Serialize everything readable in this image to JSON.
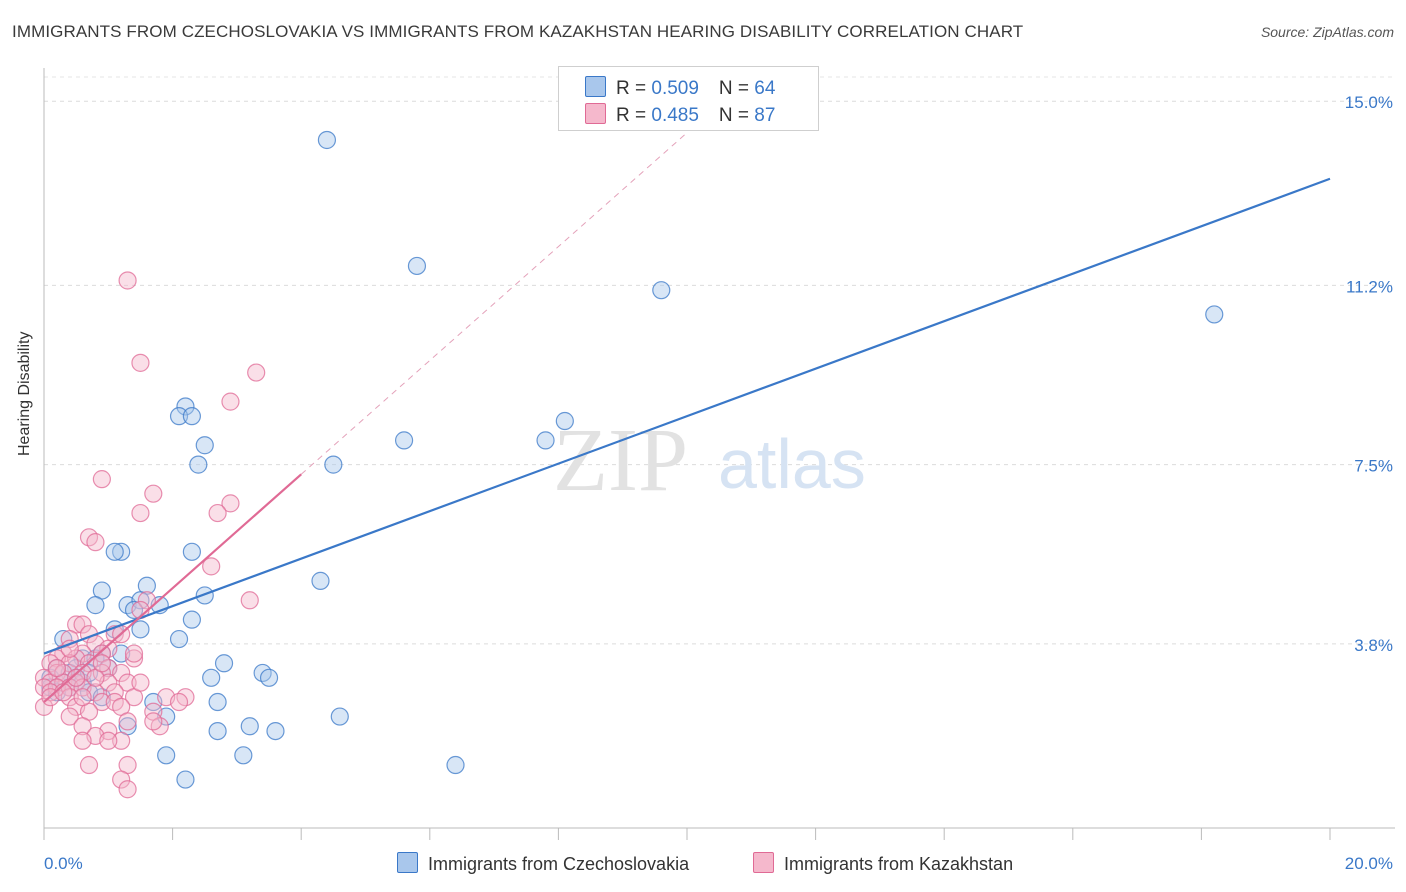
{
  "title": "IMMIGRANTS FROM CZECHOSLOVAKIA VS IMMIGRANTS FROM KAZAKHSTAN HEARING DISABILITY CORRELATION CHART",
  "source": "Source: ZipAtlas.com",
  "watermark": {
    "zip": "ZIP",
    "atlas": "atlas"
  },
  "colors": {
    "blue": "#3a78c8",
    "blue_fill": "#a9c7ec",
    "pink": "#e06a95",
    "pink_fill": "#f5b8cc"
  },
  "legend": {
    "series1": {
      "r_label": "R = ",
      "r_value": "0.509",
      "n_label": "N = ",
      "n_value": "64"
    },
    "series2": {
      "r_label": "R = ",
      "r_value": "0.485",
      "n_label": "N = ",
      "n_value": "87"
    }
  },
  "bottom_legend": {
    "series1": "Immigrants from Czechoslovakia",
    "series2": "Immigrants from Kazakhstan"
  },
  "chart_data": {
    "type": "scatter",
    "title": "IMMIGRANTS FROM CZECHOSLOVAKIA VS IMMIGRANTS FROM KAZAKHSTAN HEARING DISABILITY CORRELATION CHART",
    "xlabel": "",
    "ylabel": "Hearing Disability",
    "xlim": [
      0,
      20
    ],
    "ylim": [
      0,
      15.5
    ],
    "x_tick_labels": [
      "0.0%",
      "20.0%"
    ],
    "y_tick_values": [
      3.8,
      7.5,
      11.2,
      15.0
    ],
    "y_tick_labels": [
      "3.8%",
      "7.5%",
      "11.2%",
      "15.0%"
    ],
    "series": [
      {
        "name": "Immigrants from Czechoslovakia",
        "color": "#3a78c8",
        "R": 0.509,
        "N": 64,
        "trend": {
          "x0": 0,
          "y0": 3.6,
          "x1": 20,
          "y1": 13.4
        },
        "points": [
          [
            4.4,
            14.2
          ],
          [
            5.8,
            11.6
          ],
          [
            9.6,
            11.1
          ],
          [
            18.2,
            10.6
          ],
          [
            8.1,
            8.4
          ],
          [
            7.8,
            8.0
          ],
          [
            5.6,
            8.0
          ],
          [
            4.5,
            7.5
          ],
          [
            2.2,
            8.7
          ],
          [
            2.1,
            8.5
          ],
          [
            2.3,
            8.5
          ],
          [
            2.5,
            7.9
          ],
          [
            2.4,
            7.5
          ],
          [
            2.3,
            5.7
          ],
          [
            1.2,
            5.7
          ],
          [
            1.1,
            5.7
          ],
          [
            4.3,
            5.1
          ],
          [
            1.6,
            5.0
          ],
          [
            0.9,
            4.9
          ],
          [
            2.5,
            4.8
          ],
          [
            0.8,
            4.6
          ],
          [
            1.3,
            4.6
          ],
          [
            1.5,
            4.7
          ],
          [
            1.8,
            4.6
          ],
          [
            1.4,
            4.5
          ],
          [
            2.3,
            4.3
          ],
          [
            1.1,
            4.1
          ],
          [
            1.5,
            4.1
          ],
          [
            0.3,
            3.9
          ],
          [
            2.1,
            3.9
          ],
          [
            0.9,
            3.6
          ],
          [
            1.2,
            3.6
          ],
          [
            0.6,
            3.5
          ],
          [
            0.8,
            3.5
          ],
          [
            0.2,
            3.3
          ],
          [
            0.5,
            3.3
          ],
          [
            0.4,
            3.2
          ],
          [
            2.8,
            3.4
          ],
          [
            0.1,
            3.1
          ],
          [
            0.3,
            3.0
          ],
          [
            0.6,
            3.0
          ],
          [
            0.7,
            2.8
          ],
          [
            3.4,
            3.2
          ],
          [
            3.5,
            3.1
          ],
          [
            2.6,
            3.1
          ],
          [
            0.9,
            2.7
          ],
          [
            1.7,
            2.6
          ],
          [
            2.7,
            2.6
          ],
          [
            1.9,
            2.3
          ],
          [
            4.6,
            2.3
          ],
          [
            1.3,
            2.1
          ],
          [
            2.7,
            2.0
          ],
          [
            3.2,
            2.1
          ],
          [
            3.6,
            2.0
          ],
          [
            1.9,
            1.5
          ],
          [
            3.1,
            1.5
          ],
          [
            6.4,
            1.3
          ],
          [
            2.2,
            1.0
          ],
          [
            0.1,
            2.9
          ],
          [
            0.4,
            2.9
          ],
          [
            0.2,
            2.8
          ],
          [
            0.5,
            3.1
          ],
          [
            1.0,
            3.3
          ],
          [
            0.7,
            3.2
          ]
        ]
      },
      {
        "name": "Immigrants from Kazakhstan",
        "color": "#e06a95",
        "R": 0.485,
        "N": 87,
        "trend": {
          "x0": 0,
          "y0": 2.6,
          "x1": 4.0,
          "y1": 7.3
        },
        "points": [
          [
            1.3,
            11.3
          ],
          [
            1.5,
            9.6
          ],
          [
            3.3,
            9.4
          ],
          [
            2.9,
            8.8
          ],
          [
            0.9,
            7.2
          ],
          [
            1.7,
            6.9
          ],
          [
            2.9,
            6.7
          ],
          [
            2.7,
            6.5
          ],
          [
            1.5,
            6.5
          ],
          [
            0.7,
            6.0
          ],
          [
            0.8,
            5.9
          ],
          [
            2.6,
            5.4
          ],
          [
            3.2,
            4.7
          ],
          [
            1.6,
            4.7
          ],
          [
            1.5,
            4.5
          ],
          [
            0.5,
            4.2
          ],
          [
            0.6,
            4.2
          ],
          [
            0.7,
            4.0
          ],
          [
            1.1,
            4.0
          ],
          [
            1.2,
            4.0
          ],
          [
            0.4,
            3.9
          ],
          [
            0.8,
            3.8
          ],
          [
            1.0,
            3.7
          ],
          [
            0.3,
            3.6
          ],
          [
            0.6,
            3.6
          ],
          [
            0.9,
            3.6
          ],
          [
            0.2,
            3.5
          ],
          [
            0.5,
            3.5
          ],
          [
            1.4,
            3.5
          ],
          [
            0.1,
            3.4
          ],
          [
            0.4,
            3.4
          ],
          [
            0.7,
            3.4
          ],
          [
            1.0,
            3.3
          ],
          [
            0.2,
            3.2
          ],
          [
            0.3,
            3.2
          ],
          [
            0.6,
            3.2
          ],
          [
            0.9,
            3.2
          ],
          [
            1.2,
            3.2
          ],
          [
            0.0,
            3.1
          ],
          [
            0.1,
            3.0
          ],
          [
            0.3,
            3.0
          ],
          [
            0.5,
            3.0
          ],
          [
            1.0,
            3.0
          ],
          [
            1.3,
            3.0
          ],
          [
            0.0,
            2.9
          ],
          [
            0.2,
            2.9
          ],
          [
            0.4,
            2.9
          ],
          [
            0.6,
            2.9
          ],
          [
            0.8,
            2.8
          ],
          [
            1.1,
            2.8
          ],
          [
            0.1,
            2.8
          ],
          [
            0.4,
            2.7
          ],
          [
            1.4,
            2.7
          ],
          [
            1.9,
            2.7
          ],
          [
            2.2,
            2.7
          ],
          [
            0.9,
            2.6
          ],
          [
            1.1,
            2.6
          ],
          [
            1.2,
            2.5
          ],
          [
            0.5,
            2.5
          ],
          [
            0.0,
            2.5
          ],
          [
            2.1,
            2.6
          ],
          [
            1.7,
            2.4
          ],
          [
            0.7,
            2.4
          ],
          [
            0.4,
            2.3
          ],
          [
            1.3,
            2.2
          ],
          [
            0.6,
            2.1
          ],
          [
            1.8,
            2.1
          ],
          [
            1.7,
            2.2
          ],
          [
            1.0,
            2.0
          ],
          [
            0.8,
            1.9
          ],
          [
            1.2,
            1.8
          ],
          [
            0.6,
            1.8
          ],
          [
            1.0,
            1.8
          ],
          [
            1.3,
            1.3
          ],
          [
            0.7,
            1.3
          ],
          [
            1.2,
            1.0
          ],
          [
            1.3,
            0.8
          ],
          [
            0.1,
            2.7
          ],
          [
            0.3,
            2.8
          ],
          [
            0.5,
            3.1
          ],
          [
            0.2,
            3.3
          ],
          [
            0.8,
            3.1
          ],
          [
            1.4,
            3.6
          ],
          [
            0.4,
            3.7
          ],
          [
            0.9,
            3.4
          ],
          [
            0.6,
            2.7
          ],
          [
            1.5,
            3.0
          ]
        ]
      }
    ]
  }
}
